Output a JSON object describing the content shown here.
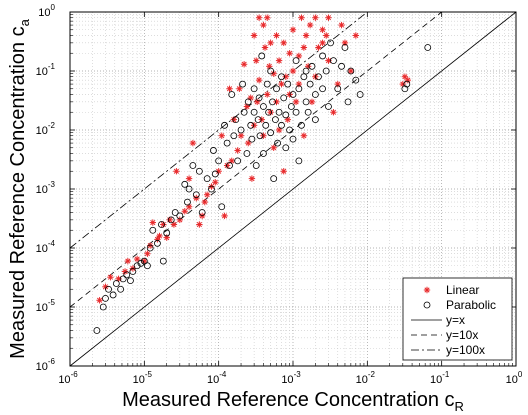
{
  "chart_data": {
    "type": "scatter",
    "title": "",
    "xlabel": "Measured Reference Concentration c",
    "xlabel_sub": "R",
    "ylabel": "Measured Reference Concentration c",
    "ylabel_sub": "a",
    "xscale": "log",
    "yscale": "log",
    "xlim": [
      1e-06,
      1
    ],
    "ylim": [
      1e-06,
      1
    ],
    "grid": true,
    "legend_position": "bottom-right",
    "x_tick_exponents": [
      -6,
      -5,
      -4,
      -3,
      -2,
      -1,
      0
    ],
    "y_tick_exponents": [
      -6,
      -5,
      -4,
      -3,
      -2,
      -1,
      0
    ],
    "tick_base": "10",
    "lines": [
      {
        "name": "y=x",
        "factor": 1,
        "style": "solid"
      },
      {
        "name": "y=10x",
        "factor": 10,
        "style": "dashed"
      },
      {
        "name": "y=100x",
        "factor": 100,
        "style": "dashdot"
      }
    ],
    "series": [
      {
        "name": "Linear",
        "marker": "asterisk",
        "color": "#e8292b",
        "points": [
          [
            2.5e-06,
            1.3e-05
          ],
          [
            3e-06,
            2.2e-05
          ],
          [
            3.5e-06,
            3.2e-05
          ],
          [
            4.5e-06,
            3e-05
          ],
          [
            5.5e-06,
            4e-05
          ],
          [
            6e-06,
            6e-05
          ],
          [
            7e-06,
            4.5e-05
          ],
          [
            8e-06,
            6.5e-05
          ],
          [
            1e-05,
            6e-05
          ],
          [
            1.1e-05,
            8e-05
          ],
          [
            1.2e-05,
            0.00011
          ],
          [
            1.3e-05,
            0.00027
          ],
          [
            1.5e-05,
            0.00014
          ],
          [
            1.6e-05,
            0.00016
          ],
          [
            1.8e-05,
            0.00025
          ],
          [
            2e-05,
            0.00015
          ],
          [
            2.2e-05,
            0.0003
          ],
          [
            2.5e-05,
            0.00025
          ],
          [
            2.7e-05,
            0.002
          ],
          [
            3e-05,
            0.0003
          ],
          [
            3.5e-05,
            0.00042
          ],
          [
            4e-05,
            0.0005
          ],
          [
            4e-05,
            0.0015
          ],
          [
            4.5e-05,
            0.006
          ],
          [
            5e-05,
            0.0007
          ],
          [
            5.5e-05,
            0.00025
          ],
          [
            6e-05,
            0.00035
          ],
          [
            6.5e-05,
            0.0006
          ],
          [
            7e-05,
            0.0008
          ],
          [
            8e-05,
            0.0011
          ],
          [
            9e-05,
            0.0013
          ],
          [
            0.0001,
            0.002
          ],
          [
            0.00011,
            0.008
          ],
          [
            0.00012,
            0.00035
          ],
          [
            0.00013,
            0.0025
          ],
          [
            0.00014,
            0.05
          ],
          [
            0.00015,
            0.003
          ],
          [
            0.00016,
            0.015
          ],
          [
            0.00018,
            0.0045
          ],
          [
            0.00019,
            0.05
          ],
          [
            0.0002,
            0.008
          ],
          [
            0.00022,
            0.13
          ],
          [
            0.00024,
            0.025
          ],
          [
            0.00025,
            0.006
          ],
          [
            0.00027,
            0.035
          ],
          [
            0.00028,
            0.0015
          ],
          [
            0.0003,
            0.4
          ],
          [
            0.0003,
            0.012
          ],
          [
            0.00032,
            0.15
          ],
          [
            0.00033,
            0.03
          ],
          [
            0.00035,
            0.8
          ],
          [
            0.00035,
            0.07
          ],
          [
            0.00038,
            0.015
          ],
          [
            0.0004,
            0.6
          ],
          [
            0.0004,
            0.008
          ],
          [
            0.00042,
            0.25
          ],
          [
            0.00045,
            0.8
          ],
          [
            0.00045,
            0.04
          ],
          [
            0.00048,
            0.12
          ],
          [
            0.0005,
            0.02
          ],
          [
            0.0005,
            0.3
          ],
          [
            0.00055,
            0.09
          ],
          [
            0.00055,
            0.005
          ],
          [
            0.0006,
            0.4
          ],
          [
            0.0006,
            0.03
          ],
          [
            0.00065,
            0.15
          ],
          [
            0.00065,
            0.01
          ],
          [
            0.0007,
            0.06
          ],
          [
            0.00075,
            0.3
          ],
          [
            0.00075,
            0.002
          ],
          [
            0.0008,
            0.08
          ],
          [
            0.00085,
            0.015
          ],
          [
            0.0009,
            0.2
          ],
          [
            0.0009,
            0.04
          ],
          [
            0.001,
            0.1
          ],
          [
            0.001,
            0.5
          ],
          [
            0.0011,
            0.03
          ],
          [
            0.0012,
            0.18
          ],
          [
            0.0012,
            0.06
          ],
          [
            0.0013,
            0.8
          ],
          [
            0.0014,
            0.25
          ],
          [
            0.0014,
            0.008
          ],
          [
            0.0015,
            0.4
          ],
          [
            0.0016,
            0.12
          ],
          [
            0.0017,
            0.6
          ],
          [
            0.0018,
            0.03
          ],
          [
            0.002,
            0.08
          ],
          [
            0.002,
            0.8
          ],
          [
            0.0022,
            0.25
          ],
          [
            0.0025,
            0.5
          ],
          [
            0.0025,
            0.3
          ],
          [
            0.0028,
            0.4
          ],
          [
            0.003,
            0.15
          ],
          [
            0.003,
            0.8
          ],
          [
            0.0035,
            0.02
          ],
          [
            0.004,
            0.06
          ],
          [
            0.0045,
            0.6
          ],
          [
            0.005,
            0.3
          ],
          [
            0.006,
            0.1
          ],
          [
            0.007,
            0.4
          ],
          [
            0.03,
            0.06
          ],
          [
            0.032,
            0.08
          ],
          [
            0.035,
            0.07
          ]
        ]
      },
      {
        "name": "Parabolic",
        "marker": "circle",
        "color": "#000000",
        "points": [
          [
            2.3e-06,
            4e-06
          ],
          [
            2.8e-06,
            1e-05
          ],
          [
            3e-06,
            1.4e-05
          ],
          [
            3.3e-06,
            2e-05
          ],
          [
            3.8e-06,
            1.6e-05
          ],
          [
            4.2e-06,
            2.5e-05
          ],
          [
            4.8e-06,
            2e-05
          ],
          [
            5.2e-06,
            3e-05
          ],
          [
            5.8e-06,
            3.5e-05
          ],
          [
            6.5e-06,
            2.8e-05
          ],
          [
            7e-06,
            4e-05
          ],
          [
            8e-06,
            5e-05
          ],
          [
            9e-06,
            5.5e-05
          ],
          [
            1e-05,
            6e-05
          ],
          [
            1.1e-05,
            5e-05
          ],
          [
            1.2e-05,
            0.0001
          ],
          [
            1.3e-05,
            0.0002
          ],
          [
            1.5e-05,
            0.00012
          ],
          [
            1.7e-05,
            0.00025
          ],
          [
            1.8e-05,
            6e-05
          ],
          [
            2e-05,
            0.00018
          ],
          [
            2.3e-05,
            0.0003
          ],
          [
            2.6e-05,
            0.0004
          ],
          [
            3e-05,
            0.00035
          ],
          [
            3.5e-05,
            0.0012
          ],
          [
            3.8e-05,
            0.0006
          ],
          [
            4e-05,
            0.001
          ],
          [
            4.5e-05,
            0.0025
          ],
          [
            5e-05,
            0.0008
          ],
          [
            5.5e-05,
            0.002
          ],
          [
            6e-05,
            0.0004
          ],
          [
            7e-05,
            0.0015
          ],
          [
            8e-05,
            0.001
          ],
          [
            8.5e-05,
            0.0045
          ],
          [
            9e-05,
            0.0018
          ],
          [
            0.0001,
            0.003
          ],
          [
            0.00011,
            0.0005
          ],
          [
            0.00012,
            0.012
          ],
          [
            0.00013,
            0.006
          ],
          [
            0.00014,
            0.0025
          ],
          [
            0.00015,
            0.04
          ],
          [
            0.00016,
            0.008
          ],
          [
            0.00017,
            0.015
          ],
          [
            0.00018,
            0.003
          ],
          [
            0.0002,
            0.01
          ],
          [
            0.00021,
            0.06
          ],
          [
            0.00022,
            0.02
          ],
          [
            0.00024,
            0.004
          ],
          [
            0.00025,
            0.03
          ],
          [
            0.00027,
            0.012
          ],
          [
            0.00028,
            0.007
          ],
          [
            0.0003,
            0.02
          ],
          [
            0.0003,
            0.05
          ],
          [
            0.00032,
            0.0025
          ],
          [
            0.00034,
            0.015
          ],
          [
            0.00035,
            0.035
          ],
          [
            0.00036,
            0.008
          ],
          [
            0.00038,
            0.18
          ],
          [
            0.0004,
            0.025
          ],
          [
            0.0004,
            0.004
          ],
          [
            0.00043,
            0.012
          ],
          [
            0.00045,
            0.06
          ],
          [
            0.00047,
            0.02
          ],
          [
            0.0005,
            0.009
          ],
          [
            0.0005,
            0.1
          ],
          [
            0.00053,
            0.03
          ],
          [
            0.00055,
            0.0015
          ],
          [
            0.00058,
            0.015
          ],
          [
            0.0006,
            0.05
          ],
          [
            0.00062,
            0.006
          ],
          [
            0.00065,
            0.02
          ],
          [
            0.0007,
            0.012
          ],
          [
            0.0007,
            0.08
          ],
          [
            0.00075,
            0.035
          ],
          [
            0.0008,
            0.005
          ],
          [
            0.0008,
            0.018
          ],
          [
            0.00085,
            0.06
          ],
          [
            0.0009,
            0.01
          ],
          [
            0.00095,
            0.025
          ],
          [
            0.001,
            0.04
          ],
          [
            0.001,
            0.007
          ],
          [
            0.0011,
            0.15
          ],
          [
            0.0011,
            0.02
          ],
          [
            0.0012,
            0.05
          ],
          [
            0.0012,
            0.003
          ],
          [
            0.0013,
            0.012
          ],
          [
            0.0014,
            0.08
          ],
          [
            0.0015,
            0.03
          ],
          [
            0.0015,
            0.1
          ],
          [
            0.0016,
            0.02
          ],
          [
            0.0017,
            0.06
          ],
          [
            0.0018,
            0.12
          ],
          [
            0.002,
            0.04
          ],
          [
            0.002,
            0.015
          ],
          [
            0.0022,
            0.08
          ],
          [
            0.0025,
            0.18
          ],
          [
            0.0025,
            0.05
          ],
          [
            0.0028,
            0.1
          ],
          [
            0.003,
            0.025
          ],
          [
            0.0032,
            0.3
          ],
          [
            0.0035,
            0.15
          ],
          [
            0.004,
            0.05
          ],
          [
            0.0045,
            0.12
          ],
          [
            0.005,
            0.25
          ],
          [
            0.0055,
            0.03
          ],
          [
            0.006,
            0.1
          ],
          [
            0.007,
            0.07
          ],
          [
            0.008,
            0.04
          ],
          [
            0.032,
            0.05
          ],
          [
            0.034,
            0.06
          ],
          [
            0.065,
            0.25
          ]
        ]
      }
    ]
  }
}
